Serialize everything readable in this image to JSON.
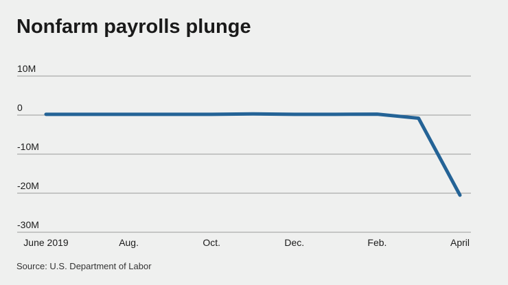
{
  "chart_data": {
    "type": "line",
    "title": "Nonfarm payrolls plunge",
    "categories": [
      "June 2019",
      null,
      "Aug.",
      null,
      "Oct.",
      null,
      "Dec.",
      null,
      "Feb.",
      null,
      "April"
    ],
    "series": [
      {
        "name": "Nonfarm payrolls",
        "color": "#246396",
        "values": [
          0.2,
          0.2,
          0.2,
          0.2,
          0.2,
          0.3,
          0.2,
          0.2,
          0.25,
          -0.8,
          -20.5
        ]
      }
    ],
    "ylim": [
      -30,
      10
    ],
    "yticks": [
      {
        "value": -30,
        "label": "-30M"
      },
      {
        "value": -20,
        "label": "-20M"
      },
      {
        "value": -10,
        "label": "-10M"
      },
      0,
      {
        "value": 10,
        "label": "10M"
      }
    ],
    "grid": true,
    "source": "Source: U.S. Department of Labor"
  }
}
